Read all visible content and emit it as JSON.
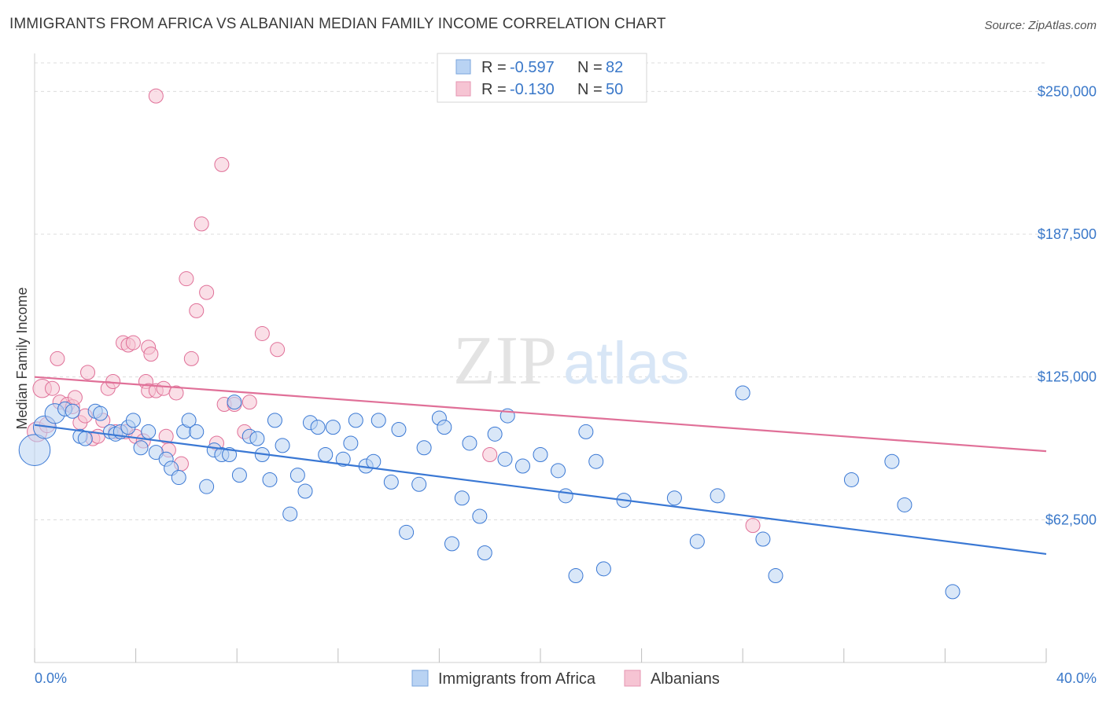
{
  "title": "IMMIGRANTS FROM AFRICA VS ALBANIAN MEDIAN FAMILY INCOME CORRELATION CHART",
  "source": "Source: ZipAtlas.com",
  "watermark": {
    "zip": "ZIP",
    "atlas": "atlas"
  },
  "colors": {
    "blue": "#3a78d4",
    "blue_fill": "#b9d3f3",
    "pink": "#e07098",
    "pink_fill": "#f6c4d3",
    "grid": "#dcdcdc",
    "axis_text": "#3a78c9"
  },
  "legend_top": {
    "rows": [
      {
        "r_label": "R = ",
        "r_value": "-0.597",
        "n_label": "N = ",
        "n_value": "82",
        "color": "blue"
      },
      {
        "r_label": "R = ",
        "r_value": "-0.130",
        "n_label": "N = ",
        "n_value": "50",
        "color": "pink"
      }
    ]
  },
  "chart_data": {
    "type": "scatter",
    "title": "IMMIGRANTS FROM AFRICA VS ALBANIAN MEDIAN FAMILY INCOME CORRELATION CHART",
    "xlabel": "",
    "ylabel": "Median Family Income",
    "xlim": [
      0,
      40
    ],
    "ylim": [
      0,
      262500
    ],
    "x_tick_labels": [
      "0.0%",
      "40.0%"
    ],
    "y_ticks": [
      62500,
      125000,
      187500,
      250000
    ],
    "y_tick_labels": [
      "$62,500",
      "$125,000",
      "$187,500",
      "$250,000"
    ],
    "grid": "horizontal dashed",
    "legend": "bottom-center",
    "series": [
      {
        "name": "Immigrants from Africa",
        "color": "blue",
        "trend": {
          "x": [
            0,
            40
          ],
          "y": [
            104000,
            47500
          ]
        },
        "points": [
          [
            0.0,
            93000,
            2.2
          ],
          [
            0.4,
            103000,
            1.6
          ],
          [
            0.8,
            109000,
            1.4
          ],
          [
            1.2,
            111000,
            1.0
          ],
          [
            1.5,
            110000,
            1.0
          ],
          [
            1.8,
            99000,
            1.0
          ],
          [
            2.0,
            98000,
            1.0
          ],
          [
            2.4,
            110000,
            1.0
          ],
          [
            2.6,
            109000,
            1.0
          ],
          [
            3.0,
            101000,
            1.0
          ],
          [
            3.2,
            100000,
            1.0
          ],
          [
            3.4,
            101000,
            1.0
          ],
          [
            3.7,
            103000,
            1.0
          ],
          [
            3.9,
            106000,
            1.0
          ],
          [
            4.2,
            94000,
            1.0
          ],
          [
            4.5,
            101000,
            1.0
          ],
          [
            4.8,
            92000,
            1.0
          ],
          [
            5.2,
            89000,
            1.0
          ],
          [
            5.4,
            85000,
            1.0
          ],
          [
            5.7,
            81000,
            1.0
          ],
          [
            5.9,
            101000,
            1.0
          ],
          [
            6.1,
            106000,
            1.0
          ],
          [
            6.4,
            101000,
            1.0
          ],
          [
            6.8,
            77000,
            1.0
          ],
          [
            7.1,
            93000,
            1.0
          ],
          [
            7.4,
            91000,
            1.0
          ],
          [
            7.7,
            91000,
            1.0
          ],
          [
            7.9,
            114000,
            1.0
          ],
          [
            8.1,
            82000,
            1.0
          ],
          [
            8.5,
            99000,
            1.0
          ],
          [
            8.8,
            98000,
            1.0
          ],
          [
            9.0,
            91000,
            1.0
          ],
          [
            9.3,
            80000,
            1.0
          ],
          [
            9.5,
            106000,
            1.0
          ],
          [
            9.8,
            95000,
            1.0
          ],
          [
            10.1,
            65000,
            1.0
          ],
          [
            10.4,
            82000,
            1.0
          ],
          [
            10.7,
            75000,
            1.0
          ],
          [
            10.9,
            105000,
            1.0
          ],
          [
            11.2,
            103000,
            1.0
          ],
          [
            11.5,
            91000,
            1.0
          ],
          [
            11.8,
            103000,
            1.0
          ],
          [
            12.2,
            89000,
            1.0
          ],
          [
            12.5,
            96000,
            1.0
          ],
          [
            12.7,
            106000,
            1.0
          ],
          [
            13.1,
            86000,
            1.0
          ],
          [
            13.4,
            88000,
            1.0
          ],
          [
            13.6,
            106000,
            1.0
          ],
          [
            14.1,
            79000,
            1.0
          ],
          [
            14.4,
            102000,
            1.0
          ],
          [
            14.7,
            57000,
            1.0
          ],
          [
            15.2,
            78000,
            1.0
          ],
          [
            15.4,
            94000,
            1.0
          ],
          [
            16.0,
            107000,
            1.0
          ],
          [
            16.2,
            103000,
            1.0
          ],
          [
            16.5,
            52000,
            1.0
          ],
          [
            16.9,
            72000,
            1.0
          ],
          [
            17.2,
            96000,
            1.0
          ],
          [
            17.6,
            64000,
            1.0
          ],
          [
            17.8,
            48000,
            1.0
          ],
          [
            18.2,
            100000,
            1.0
          ],
          [
            18.6,
            89000,
            1.0
          ],
          [
            18.7,
            108000,
            1.0
          ],
          [
            19.3,
            86000,
            1.0
          ],
          [
            20.0,
            91000,
            1.0
          ],
          [
            20.7,
            84000,
            1.0
          ],
          [
            21.0,
            73000,
            1.0
          ],
          [
            21.4,
            38000,
            1.0
          ],
          [
            21.8,
            101000,
            1.0
          ],
          [
            22.2,
            88000,
            1.0
          ],
          [
            22.5,
            41000,
            1.0
          ],
          [
            23.3,
            71000,
            1.0
          ],
          [
            25.3,
            72000,
            1.0
          ],
          [
            26.2,
            53000,
            1.0
          ],
          [
            27.0,
            73000,
            1.0
          ],
          [
            28.0,
            118000,
            1.0
          ],
          [
            28.8,
            54000,
            1.0
          ],
          [
            29.3,
            38000,
            1.0
          ],
          [
            32.3,
            80000,
            1.0
          ],
          [
            33.9,
            88000,
            1.0
          ],
          [
            34.4,
            69000,
            1.0
          ],
          [
            36.3,
            31000,
            1.0
          ]
        ]
      },
      {
        "name": "Albanians",
        "color": "pink",
        "trend": {
          "x": [
            0,
            40
          ],
          "y": [
            125000,
            92500
          ]
        },
        "points": [
          [
            0.1,
            101000,
            1.4
          ],
          [
            0.3,
            120000,
            1.3
          ],
          [
            0.5,
            104000,
            1.1
          ],
          [
            0.7,
            120000,
            1.0
          ],
          [
            0.9,
            133000,
            1.0
          ],
          [
            1.0,
            114000,
            1.0
          ],
          [
            1.3,
            113000,
            1.0
          ],
          [
            1.5,
            112000,
            1.0
          ],
          [
            1.6,
            116000,
            1.0
          ],
          [
            1.8,
            105000,
            1.0
          ],
          [
            2.0,
            108000,
            1.0
          ],
          [
            2.1,
            127000,
            1.0
          ],
          [
            2.3,
            98000,
            1.0
          ],
          [
            2.5,
            99000,
            1.0
          ],
          [
            2.7,
            106000,
            1.0
          ],
          [
            2.9,
            120000,
            1.0
          ],
          [
            3.1,
            123000,
            1.0
          ],
          [
            3.2,
            101000,
            1.0
          ],
          [
            3.5,
            140000,
            1.0
          ],
          [
            3.7,
            139000,
            1.0
          ],
          [
            3.9,
            140000,
            1.0
          ],
          [
            3.6,
            101000,
            1.0
          ],
          [
            4.0,
            99000,
            1.0
          ],
          [
            4.3,
            97000,
            1.0
          ],
          [
            4.5,
            138000,
            1.0
          ],
          [
            4.6,
            135000,
            1.0
          ],
          [
            4.4,
            123000,
            1.0
          ],
          [
            4.5,
            119000,
            1.0
          ],
          [
            4.8,
            119000,
            1.0
          ],
          [
            5.1,
            120000,
            1.0
          ],
          [
            5.2,
            99000,
            1.0
          ],
          [
            5.3,
            93000,
            1.0
          ],
          [
            5.6,
            118000,
            1.0
          ],
          [
            5.8,
            87000,
            1.0
          ],
          [
            6.0,
            168000,
            1.0
          ],
          [
            6.2,
            133000,
            1.0
          ],
          [
            6.4,
            154000,
            1.0
          ],
          [
            6.6,
            192000,
            1.0
          ],
          [
            6.8,
            162000,
            1.0
          ],
          [
            7.2,
            96000,
            1.0
          ],
          [
            7.4,
            218000,
            1.0
          ],
          [
            7.5,
            113000,
            1.0
          ],
          [
            7.9,
            113000,
            1.0
          ],
          [
            8.3,
            101000,
            1.0
          ],
          [
            8.5,
            114000,
            1.0
          ],
          [
            9.0,
            144000,
            1.0
          ],
          [
            9.6,
            137000,
            1.0
          ],
          [
            4.8,
            248000,
            1.0
          ],
          [
            18.0,
            91000,
            1.0
          ],
          [
            28.4,
            60000,
            1.0
          ]
        ]
      }
    ]
  }
}
